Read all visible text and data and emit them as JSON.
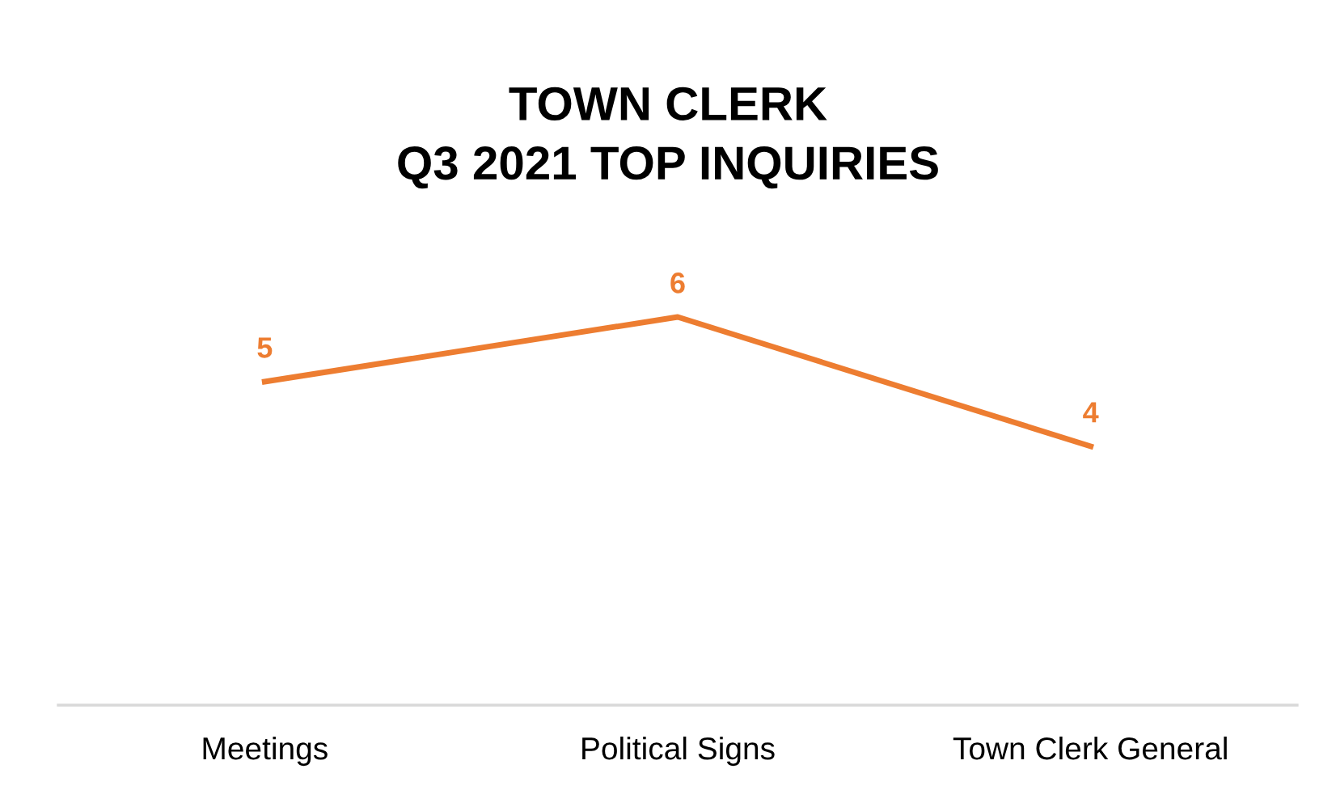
{
  "chart_data": {
    "type": "line",
    "title": "TOWN CLERK\nQ3 2021 TOP INQUIRIES",
    "categories": [
      "Meetings",
      "Political Signs",
      "Town Clerk General"
    ],
    "series": [
      {
        "color": "#ed7d31",
        "values": [
          5,
          6,
          4
        ]
      }
    ],
    "tick_labels": "x",
    "data_labels": true,
    "grid": false,
    "legend": false,
    "line_style": "solid"
  }
}
